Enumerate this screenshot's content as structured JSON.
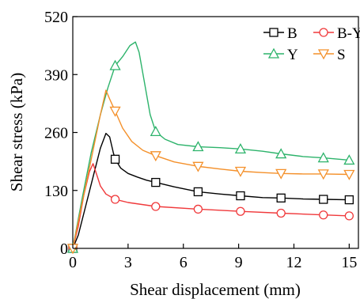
{
  "chart_data": {
    "type": "line",
    "title": "",
    "xlabel": "Shear displacement (mm)",
    "ylabel": "Shear stress (kPa)",
    "xlim": [
      0,
      15.5
    ],
    "ylim": [
      0,
      520
    ],
    "xticks": [
      0,
      3,
      6,
      9,
      12,
      15
    ],
    "yticks": [
      0,
      130,
      260,
      390,
      520
    ],
    "xtick_labels": [
      "0",
      "3",
      "6",
      "9",
      "12",
      "15"
    ],
    "ytick_labels": [
      "0",
      "130",
      "260",
      "390",
      "520"
    ],
    "grid": false,
    "legend_position": "top-right",
    "series": [
      {
        "name": "B",
        "color": "#000000",
        "marker": "square",
        "points": [
          [
            0,
            0
          ],
          [
            0.3,
            30
          ],
          [
            0.7,
            95
          ],
          [
            1.1,
            160
          ],
          [
            1.5,
            225
          ],
          [
            1.8,
            258
          ],
          [
            2.0,
            250
          ],
          [
            2.2,
            215
          ],
          [
            2.3,
            200
          ],
          [
            2.6,
            180
          ],
          [
            3.0,
            168
          ],
          [
            3.5,
            160
          ],
          [
            4.0,
            153
          ],
          [
            4.5,
            148
          ],
          [
            5.5,
            138
          ],
          [
            6.8,
            127
          ],
          [
            8.0,
            122
          ],
          [
            9.1,
            118
          ],
          [
            10.3,
            114
          ],
          [
            11.3,
            113
          ],
          [
            12.5,
            111
          ],
          [
            13.6,
            110
          ],
          [
            15.0,
            109
          ]
        ],
        "markers": [
          [
            0,
            0
          ],
          [
            2.3,
            200
          ],
          [
            4.5,
            148
          ],
          [
            6.8,
            127
          ],
          [
            9.1,
            118
          ],
          [
            11.3,
            113
          ],
          [
            13.6,
            110
          ],
          [
            15.0,
            109
          ]
        ]
      },
      {
        "name": "B-Y",
        "color": "#f0393b",
        "marker": "circle",
        "points": [
          [
            0,
            0
          ],
          [
            0.3,
            50
          ],
          [
            0.6,
            120
          ],
          [
            0.9,
            172
          ],
          [
            1.1,
            190
          ],
          [
            1.3,
            165
          ],
          [
            1.5,
            140
          ],
          [
            1.8,
            122
          ],
          [
            2.3,
            110
          ],
          [
            3.0,
            103
          ],
          [
            4.5,
            94
          ],
          [
            6.8,
            88
          ],
          [
            9.1,
            83
          ],
          [
            11.3,
            79
          ],
          [
            13.6,
            75
          ],
          [
            15.0,
            73
          ]
        ],
        "markers": [
          [
            0,
            0
          ],
          [
            2.3,
            110
          ],
          [
            4.5,
            94
          ],
          [
            6.8,
            88
          ],
          [
            9.1,
            83
          ],
          [
            11.3,
            79
          ],
          [
            13.6,
            75
          ],
          [
            15.0,
            73
          ]
        ]
      },
      {
        "name": "Y",
        "color": "#2db36b",
        "marker": "triangle-up",
        "points": [
          [
            0,
            0
          ],
          [
            0.5,
            110
          ],
          [
            1.0,
            215
          ],
          [
            1.5,
            300
          ],
          [
            1.9,
            360
          ],
          [
            2.3,
            410
          ],
          [
            2.7,
            430
          ],
          [
            3.1,
            455
          ],
          [
            3.4,
            463
          ],
          [
            3.6,
            440
          ],
          [
            3.9,
            370
          ],
          [
            4.2,
            300
          ],
          [
            4.5,
            262
          ],
          [
            5.0,
            245
          ],
          [
            5.7,
            233
          ],
          [
            6.8,
            228
          ],
          [
            8.0,
            226
          ],
          [
            9.1,
            223
          ],
          [
            10.3,
            218
          ],
          [
            11.3,
            212
          ],
          [
            12.5,
            206
          ],
          [
            13.6,
            203
          ],
          [
            15.0,
            198
          ]
        ],
        "markers": [
          [
            0,
            0
          ],
          [
            2.3,
            410
          ],
          [
            4.5,
            262
          ],
          [
            6.8,
            228
          ],
          [
            9.1,
            223
          ],
          [
            11.3,
            212
          ],
          [
            13.6,
            203
          ],
          [
            15.0,
            198
          ]
        ]
      },
      {
        "name": "S",
        "color": "#f4902a",
        "marker": "triangle-down",
        "points": [
          [
            0,
            0
          ],
          [
            0.5,
            100
          ],
          [
            1.0,
            200
          ],
          [
            1.5,
            300
          ],
          [
            1.8,
            355
          ],
          [
            2.0,
            335
          ],
          [
            2.3,
            308
          ],
          [
            2.7,
            270
          ],
          [
            3.2,
            240
          ],
          [
            3.8,
            220
          ],
          [
            4.5,
            208
          ],
          [
            5.5,
            194
          ],
          [
            6.8,
            184
          ],
          [
            8.0,
            178
          ],
          [
            9.1,
            173
          ],
          [
            10.3,
            170
          ],
          [
            11.3,
            168
          ],
          [
            12.5,
            167
          ],
          [
            13.6,
            167
          ],
          [
            15.0,
            166
          ]
        ],
        "markers": [
          [
            0,
            0
          ],
          [
            2.3,
            308
          ],
          [
            4.5,
            208
          ],
          [
            6.8,
            184
          ],
          [
            9.1,
            173
          ],
          [
            11.3,
            168
          ],
          [
            13.6,
            167
          ],
          [
            15.0,
            166
          ]
        ]
      }
    ]
  }
}
